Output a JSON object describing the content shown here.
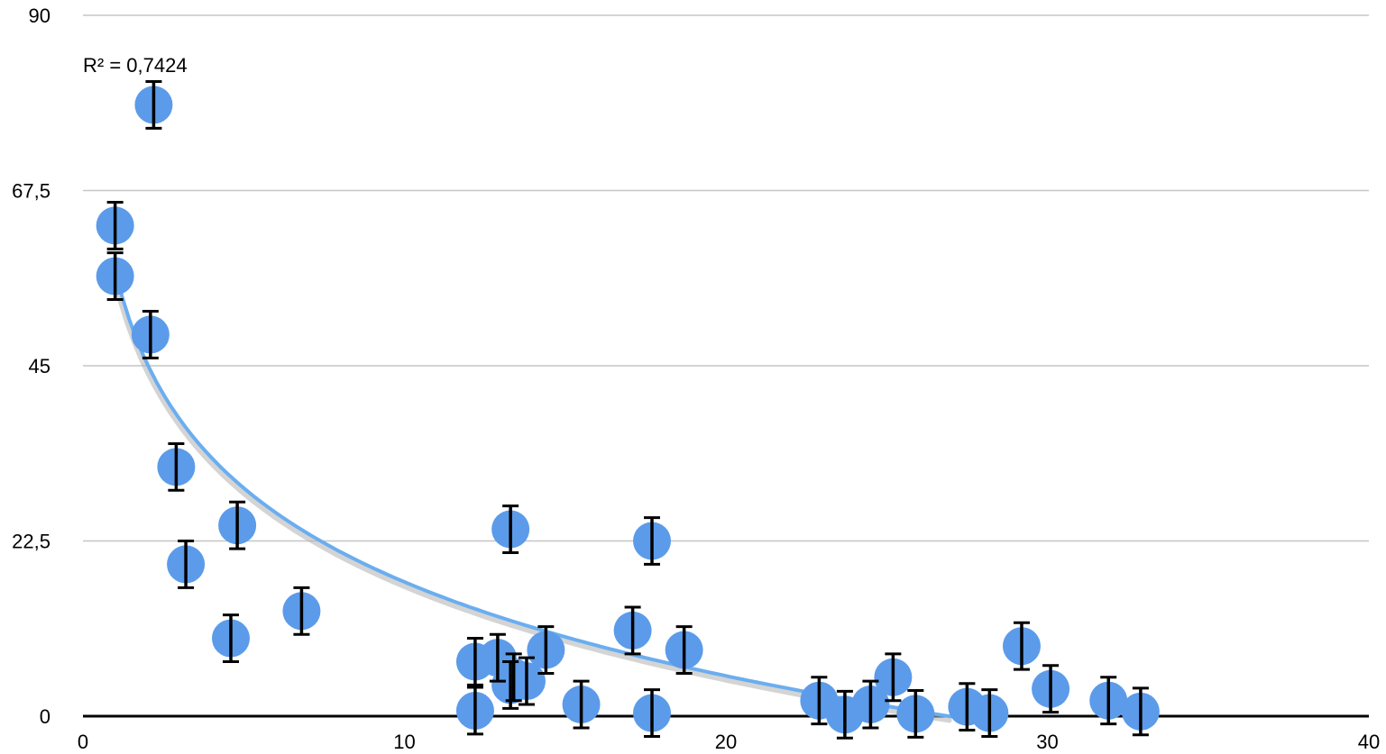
{
  "chart_data": {
    "type": "scatter",
    "title": "",
    "xlabel": "",
    "ylabel": "",
    "xlim": [
      0,
      40
    ],
    "ylim": [
      0,
      90
    ],
    "x_ticks": [
      "0",
      "10",
      "20",
      "30",
      "40"
    ],
    "y_ticks": [
      "0",
      "22,5",
      "45",
      "67,5",
      "90"
    ],
    "x_tick_values": [
      0,
      10,
      20,
      30,
      40
    ],
    "y_tick_values": [
      0,
      22.5,
      45,
      67.5,
      90
    ],
    "grid": "horizontal",
    "legend": "none",
    "annotation": "R² = 0,7424",
    "colors": {
      "point": "#5b9bea",
      "trendline": "#6aaef0",
      "trendline_shadow": "#b0b0b0",
      "gridline": "#c6c6c6",
      "axis": "#000000",
      "error_bar": "#000000"
    },
    "trendline": {
      "type": "logarithmic",
      "x_start": 1.0,
      "x_end": 27.0,
      "a": -17.4,
      "b": 57.3
    },
    "series": [
      {
        "points": [
          {
            "x": 1.0,
            "y": 63.0,
            "err": 3.0
          },
          {
            "x": 1.0,
            "y": 56.5,
            "err": 3.0
          },
          {
            "x": 2.2,
            "y": 78.5,
            "err": 3.0
          },
          {
            "x": 2.1,
            "y": 49.0,
            "err": 3.0
          },
          {
            "x": 2.9,
            "y": 32.0,
            "err": 3.0
          },
          {
            "x": 3.2,
            "y": 19.5,
            "err": 3.0
          },
          {
            "x": 4.8,
            "y": 24.5,
            "err": 3.0
          },
          {
            "x": 4.6,
            "y": 10.0,
            "err": 3.0
          },
          {
            "x": 6.8,
            "y": 13.5,
            "err": 3.0
          },
          {
            "x": 12.2,
            "y": 7.0,
            "err": 3.0
          },
          {
            "x": 12.2,
            "y": 0.7,
            "err": 3.0
          },
          {
            "x": 12.9,
            "y": 7.5,
            "err": 3.0
          },
          {
            "x": 13.3,
            "y": 24.0,
            "err": 3.0
          },
          {
            "x": 13.3,
            "y": 4.0,
            "err": 3.0
          },
          {
            "x": 13.4,
            "y": 5.0,
            "err": 3.0
          },
          {
            "x": 13.8,
            "y": 4.5,
            "err": 3.0
          },
          {
            "x": 14.4,
            "y": 8.5,
            "err": 3.0
          },
          {
            "x": 15.5,
            "y": 1.5,
            "err": 3.0
          },
          {
            "x": 17.1,
            "y": 11.0,
            "err": 3.0
          },
          {
            "x": 17.7,
            "y": 22.5,
            "err": 3.0
          },
          {
            "x": 17.7,
            "y": 0.4,
            "err": 3.0
          },
          {
            "x": 18.7,
            "y": 8.5,
            "err": 3.0
          },
          {
            "x": 22.9,
            "y": 2.0,
            "err": 3.0
          },
          {
            "x": 23.7,
            "y": 0.2,
            "err": 3.0
          },
          {
            "x": 24.5,
            "y": 1.5,
            "err": 3.0
          },
          {
            "x": 25.2,
            "y": 5.0,
            "err": 3.0
          },
          {
            "x": 25.9,
            "y": 0.3,
            "err": 3.0
          },
          {
            "x": 27.5,
            "y": 1.2,
            "err": 3.0
          },
          {
            "x": 28.2,
            "y": 0.4,
            "err": 3.0
          },
          {
            "x": 29.2,
            "y": 9.0,
            "err": 3.0
          },
          {
            "x": 30.1,
            "y": 3.5,
            "err": 3.0
          },
          {
            "x": 31.9,
            "y": 2.0,
            "err": 3.0
          },
          {
            "x": 32.9,
            "y": 0.6,
            "err": 3.0
          }
        ]
      }
    ]
  }
}
